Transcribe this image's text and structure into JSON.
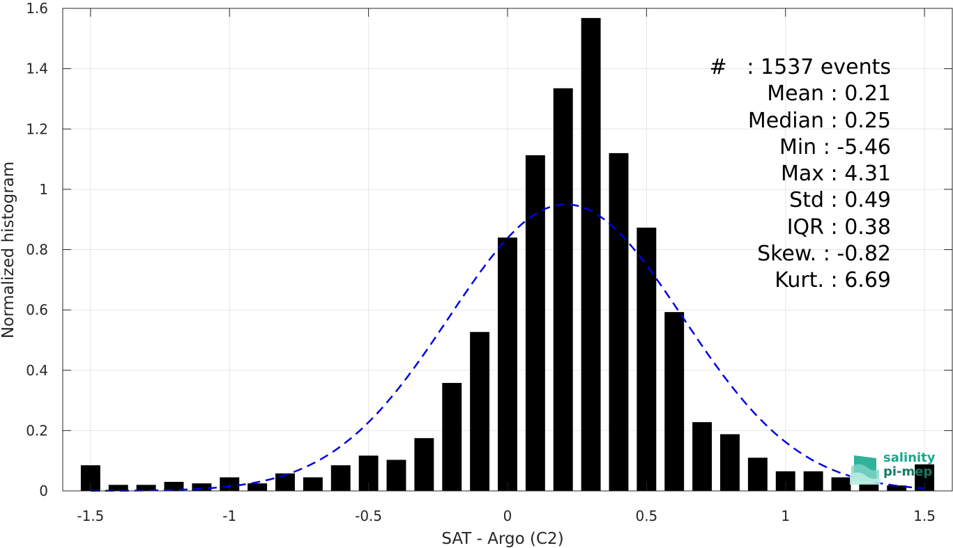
{
  "chart_data": {
    "type": "bar",
    "xlabel": "SAT - Argo (C2)",
    "ylabel": "Normalized histogram",
    "xlim": [
      -1.6,
      1.6
    ],
    "ylim": [
      0,
      1.6
    ],
    "xticks": [
      -1.5,
      -1,
      -0.5,
      0,
      0.5,
      1,
      1.5
    ],
    "xtick_labels": [
      "-1.5",
      "-1",
      "-0.5",
      "0",
      "0.5",
      "1",
      "1.5"
    ],
    "yticks": [
      0,
      0.2,
      0.4,
      0.6,
      0.8,
      1,
      1.2,
      1.4,
      1.6
    ],
    "ytick_labels": [
      "0",
      "0.2",
      "0.4",
      "0.6",
      "0.8",
      "1",
      "1.2",
      "1.4",
      "1.6"
    ],
    "grid": true,
    "bar_width": 0.07,
    "bar_color": "#000000",
    "bars": {
      "x": [
        -1.5,
        -1.4,
        -1.3,
        -1.2,
        -1.1,
        -1.0,
        -0.9,
        -0.8,
        -0.7,
        -0.6,
        -0.5,
        -0.4,
        -0.3,
        -0.2,
        -0.1,
        0.0,
        0.1,
        0.2,
        0.3,
        0.4,
        0.5,
        0.6,
        0.7,
        0.8,
        0.9,
        1.0,
        1.1,
        1.2,
        1.3,
        1.4,
        1.5
      ],
      "values": [
        0.085,
        0.02,
        0.02,
        0.03,
        0.025,
        0.045,
        0.025,
        0.058,
        0.045,
        0.085,
        0.117,
        0.103,
        0.175,
        0.358,
        0.527,
        0.84,
        1.113,
        1.335,
        1.568,
        1.12,
        0.873,
        0.593,
        0.228,
        0.188,
        0.11,
        0.065,
        0.065,
        0.045,
        0.025,
        0.018,
        0.088
      ]
    },
    "fit_curve": {
      "style": "dashed",
      "color": "#0000e0",
      "mean": 0.21,
      "std": 0.42,
      "peak": 0.95
    },
    "stats": [
      {
        "label": "#  ",
        "value": "1537 events"
      },
      {
        "label": "Mean",
        "value": "0.21"
      },
      {
        "label": "Median",
        "value": "0.25"
      },
      {
        "label": "Min",
        "value": "-5.46"
      },
      {
        "label": "Max",
        "value": "4.31"
      },
      {
        "label": "Std",
        "value": "0.49"
      },
      {
        "label": "IQR",
        "value": "0.38"
      },
      {
        "label": "Skew.",
        "value": "-0.82"
      },
      {
        "label": "Kurt.",
        "value": "6.69"
      }
    ]
  },
  "logo": {
    "line1": "salinity",
    "line2": "pi-mep",
    "color": "#1aa88f"
  }
}
